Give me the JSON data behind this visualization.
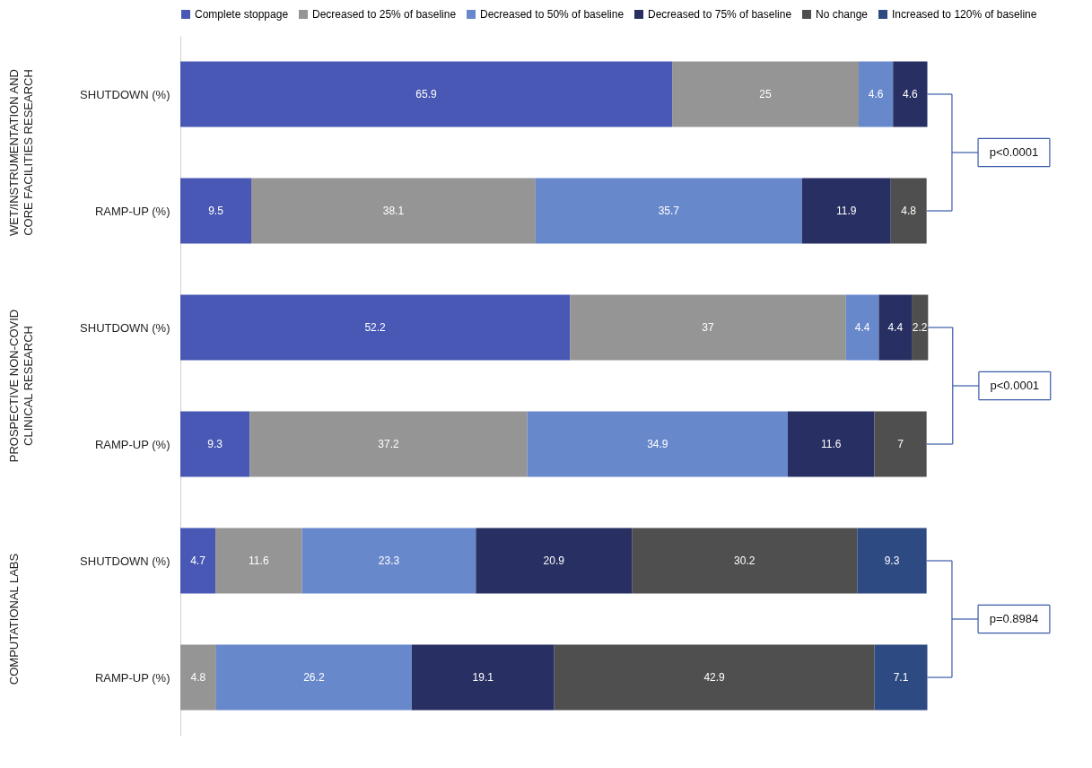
{
  "chart_data": {
    "type": "bar",
    "orientation": "horizontal",
    "stacked": true,
    "data_labels": true,
    "legend": "top right",
    "tick_labels": "y",
    "categories": [
      "SHUTDOWN (%)",
      "RAMP-UP (%)",
      "SHUTDOWN (%)",
      "RAMP-UP (%)",
      "SHUTDOWN (%)",
      "RAMP-UP (%)"
    ],
    "series": [
      {
        "name": "Complete stoppage",
        "color": "#4858b4",
        "values": [
          65.9,
          9.5,
          52.2,
          9.3,
          4.7,
          null
        ]
      },
      {
        "name": "Decreased to 25% of baseline",
        "color": "#959595",
        "values": [
          25,
          38.1,
          37,
          37.2,
          11.6,
          4.8
        ]
      },
      {
        "name": "Decreased to 50% of baseline",
        "color": "#6888cc",
        "values": [
          4.6,
          35.7,
          4.4,
          34.9,
          23.3,
          26.2
        ]
      },
      {
        "name": "Decreased to 75% of baseline",
        "color": "#282f62",
        "values": [
          4.6,
          11.9,
          4.4,
          11.6,
          20.9,
          19.1
        ]
      },
      {
        "name": "No change",
        "color": "#4f4f4f",
        "values": [
          null,
          4.8,
          2.2,
          7,
          30.2,
          42.9
        ]
      },
      {
        "name": "Increased to 120% of baseline",
        "color": "#2e4a82",
        "values": [
          null,
          null,
          null,
          null,
          9.3,
          7.1
        ]
      }
    ],
    "annotations": [
      "WET/INSTRUMENTATION AND CORE FACILITIES RESEARCH",
      "PROSPECTIVE NON-COVID CLINICAL RESEARCH",
      "COMPUTATIONAL LABS",
      "p<0.0001",
      "p<0.0001",
      "p=0.8984"
    ]
  }
}
